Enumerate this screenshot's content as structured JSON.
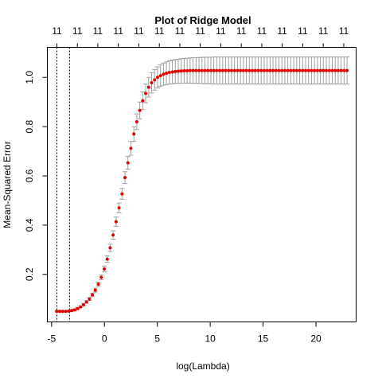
{
  "chart_data": {
    "type": "scatter",
    "title": "Plot of Ridge Model",
    "xlabel": "log(Lambda)",
    "ylabel": "Mean-Squared Error",
    "xlim": [
      -5.4,
      23.8
    ],
    "ylim": [
      0.007,
      1.122
    ],
    "x_ticks": [
      -5,
      0,
      5,
      10,
      15,
      20
    ],
    "x_tick_labels": [
      "-5",
      "0",
      "5",
      "10",
      "15",
      "20"
    ],
    "y_ticks": [
      0.2,
      0.4,
      0.6,
      0.8,
      1.0
    ],
    "y_tick_labels": [
      "0.2",
      "0.4",
      "0.6",
      "0.8",
      "1.0"
    ],
    "top_axis_labels": [
      "11",
      "11",
      "11",
      "11",
      "11",
      "11",
      "11",
      "11",
      "11",
      "11",
      "11",
      "11",
      "11",
      "11",
      "11"
    ],
    "top_axis_positions": [
      -4.5,
      -2.56,
      -0.63,
      1.31,
      3.25,
      5.19,
      7.13,
      9.06,
      11.0,
      12.94,
      14.88,
      16.81,
      18.75,
      20.69,
      22.63
    ],
    "vertical_lines": [
      -4.5,
      -3.3
    ],
    "point_color": "#e00000",
    "errorbar_color": "#a0a0a0",
    "series": [
      {
        "x": [
          -4.5,
          -4.22,
          -3.94,
          -3.66,
          -3.38,
          -3.1,
          -2.82,
          -2.54,
          -2.26,
          -1.98,
          -1.7,
          -1.42,
          -1.14,
          -0.86,
          -0.58,
          -0.3,
          -0.02,
          0.26,
          0.54,
          0.82,
          1.1,
          1.38,
          1.66,
          1.94,
          2.22,
          2.5,
          2.78,
          3.06,
          3.34,
          3.62,
          3.9,
          4.18,
          4.46,
          4.74,
          5.02,
          5.3,
          5.58,
          5.86,
          6.14,
          6.42,
          6.7,
          6.98,
          7.26,
          7.54,
          7.82,
          8.1,
          8.38,
          8.66,
          8.94,
          9.22,
          9.5,
          9.78,
          10.06,
          10.34,
          10.62,
          10.9,
          11.18,
          11.46,
          11.74,
          12.02,
          12.3,
          12.58,
          12.86,
          13.14,
          13.42,
          13.7,
          13.98,
          14.26,
          14.54,
          14.82,
          15.1,
          15.38,
          15.66,
          15.94,
          16.22,
          16.5,
          16.78,
          17.06,
          17.34,
          17.62,
          17.9,
          18.18,
          18.46,
          18.74,
          19.02,
          19.3,
          19.58,
          19.86,
          20.14,
          20.42,
          20.7,
          20.98,
          21.26,
          21.54,
          21.82,
          22.1,
          22.38,
          22.66,
          22.94
        ],
        "y": [
          0.05,
          0.05,
          0.05,
          0.05,
          0.051,
          0.053,
          0.056,
          0.061,
          0.068,
          0.077,
          0.088,
          0.1,
          0.117,
          0.136,
          0.16,
          0.188,
          0.222,
          0.262,
          0.308,
          0.36,
          0.414,
          0.47,
          0.527,
          0.593,
          0.653,
          0.712,
          0.77,
          0.82,
          0.866,
          0.905,
          0.935,
          0.96,
          0.978,
          0.99,
          1.0,
          1.007,
          1.013,
          1.017,
          1.02,
          1.022,
          1.024,
          1.025,
          1.026,
          1.027,
          1.027,
          1.028,
          1.028,
          1.028,
          1.028,
          1.028,
          1.028,
          1.028,
          1.028,
          1.028,
          1.028,
          1.028,
          1.028,
          1.028,
          1.028,
          1.028,
          1.028,
          1.028,
          1.028,
          1.028,
          1.028,
          1.028,
          1.028,
          1.028,
          1.028,
          1.028,
          1.028,
          1.028,
          1.028,
          1.028,
          1.028,
          1.028,
          1.028,
          1.028,
          1.028,
          1.028,
          1.028,
          1.028,
          1.028,
          1.028,
          1.028,
          1.028,
          1.028,
          1.028,
          1.028,
          1.028,
          1.028,
          1.028,
          1.028,
          1.028,
          1.028,
          1.028,
          1.028,
          1.028,
          1.028
        ],
        "err": [
          0.003,
          0.003,
          0.003,
          0.003,
          0.003,
          0.003,
          0.004,
          0.004,
          0.004,
          0.005,
          0.005,
          0.006,
          0.007,
          0.008,
          0.009,
          0.01,
          0.012,
          0.013,
          0.015,
          0.017,
          0.019,
          0.02,
          0.022,
          0.024,
          0.026,
          0.028,
          0.03,
          0.032,
          0.034,
          0.036,
          0.038,
          0.04,
          0.041,
          0.042,
          0.043,
          0.044,
          0.045,
          0.046,
          0.047,
          0.048,
          0.048,
          0.049,
          0.05,
          0.05,
          0.051,
          0.051,
          0.052,
          0.052,
          0.053,
          0.053,
          0.054,
          0.054,
          0.054,
          0.055,
          0.055,
          0.055,
          0.055,
          0.055,
          0.055,
          0.055,
          0.055,
          0.055,
          0.055,
          0.055,
          0.055,
          0.055,
          0.055,
          0.055,
          0.055,
          0.055,
          0.055,
          0.055,
          0.055,
          0.055,
          0.055,
          0.055,
          0.055,
          0.055,
          0.055,
          0.055,
          0.055,
          0.055,
          0.055,
          0.055,
          0.055,
          0.055,
          0.055,
          0.055,
          0.055,
          0.055,
          0.055,
          0.055,
          0.055,
          0.055,
          0.055,
          0.055,
          0.055,
          0.055,
          0.055
        ]
      }
    ]
  }
}
